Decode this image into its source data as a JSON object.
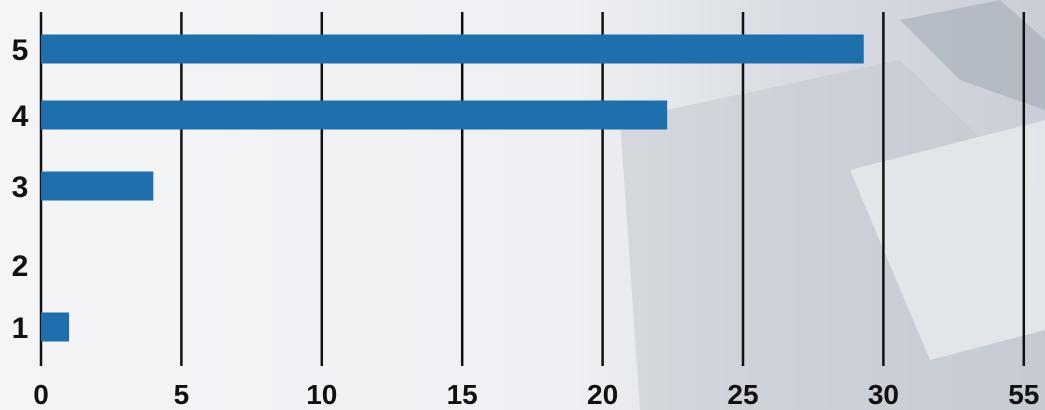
{
  "chart_data": {
    "type": "bar",
    "orientation": "horizontal",
    "categories": [
      "1",
      "2",
      "3",
      "4",
      "5"
    ],
    "values": [
      1,
      0,
      4,
      22.3,
      29.3
    ],
    "x_ticks": [
      "0",
      "5",
      "10",
      "15",
      "20",
      "25",
      "30",
      "55"
    ],
    "title": "",
    "xlabel": "",
    "ylabel": "",
    "grid": "vertical",
    "bar_color": "#1f6fad",
    "grid_color": "#111111"
  }
}
